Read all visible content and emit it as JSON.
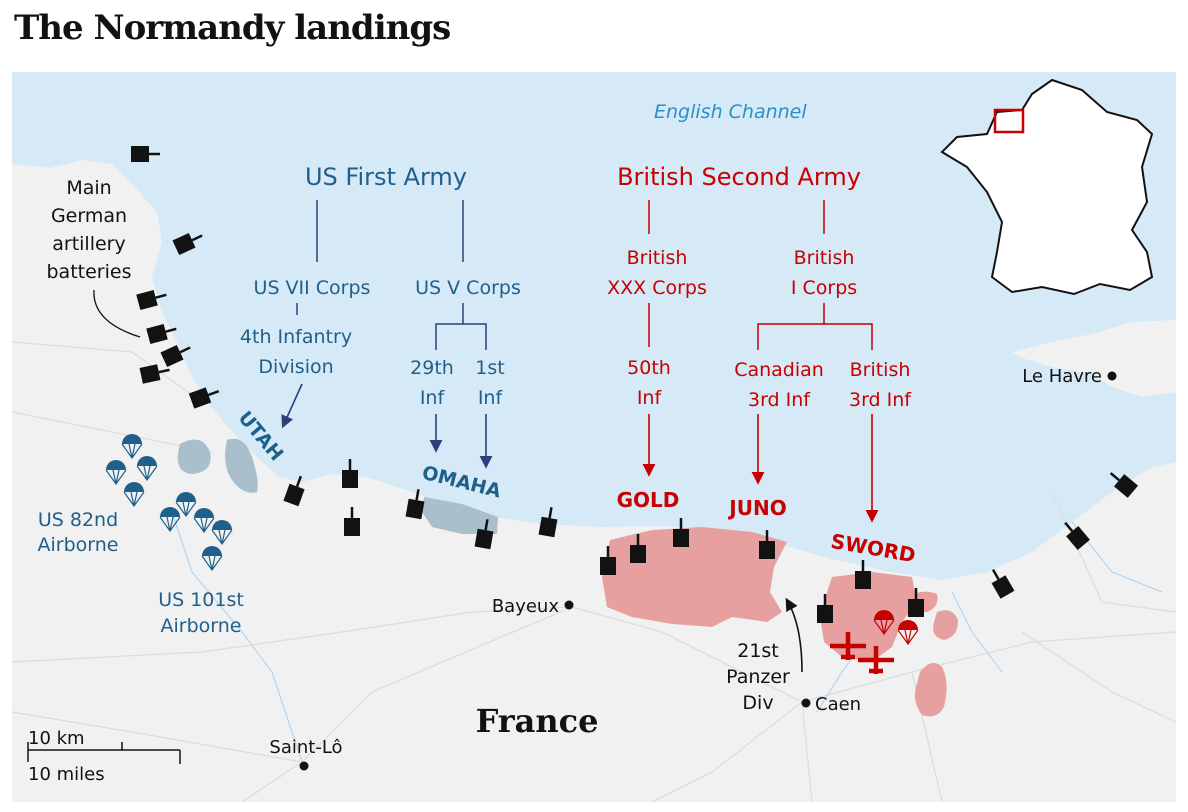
{
  "title": "The Normandy landings",
  "water_label": "English Channel",
  "country_label": "France",
  "armies": {
    "us": "US First Army",
    "british": "British Second Army"
  },
  "corps": {
    "us_vii": "US VII Corps",
    "us_v": "US V Corps",
    "british_xxx": [
      "British",
      "XXX Corps"
    ],
    "british_i": [
      "British",
      "I Corps"
    ]
  },
  "divisions": {
    "us_4th": [
      "4th Infantry",
      "Division"
    ],
    "us_29th": [
      "29th",
      "Inf"
    ],
    "us_1st": [
      "1st",
      "Inf"
    ],
    "br_50th": [
      "50th",
      "Inf"
    ],
    "canadian_3rd": [
      "Canadian",
      "3rd Inf"
    ],
    "british_3rd": [
      "British",
      "3rd Inf"
    ]
  },
  "beaches": {
    "utah": "UTAH",
    "omaha": "OMAHA",
    "gold": "GOLD",
    "juno": "JUNO",
    "sword": "SWORD"
  },
  "batteries_label": [
    "Main",
    "German",
    "artillery",
    "batteries"
  ],
  "airborne": {
    "us_82nd": [
      "US 82nd",
      "Airborne"
    ],
    "us_101st": [
      "US 101st",
      "Airborne"
    ]
  },
  "panzer_label": [
    "21st",
    "Panzer",
    "Div"
  ],
  "towns": {
    "le_havre": "Le Havre",
    "bayeux": "Bayeux",
    "caen": "Caen",
    "saint_lo": "Saint-Lô"
  },
  "scale": {
    "km": "10 km",
    "miles": "10 miles"
  },
  "colors": {
    "sea": "#d6e9f7",
    "land": "#f1f1f1",
    "us_blue": "#1f5f8b",
    "us_dark": "#2d3f7c",
    "british_red": "#c70000",
    "beachhead": "#e6a0a0",
    "us_beachhead": "#a9bfcc",
    "battery": "#121212"
  }
}
